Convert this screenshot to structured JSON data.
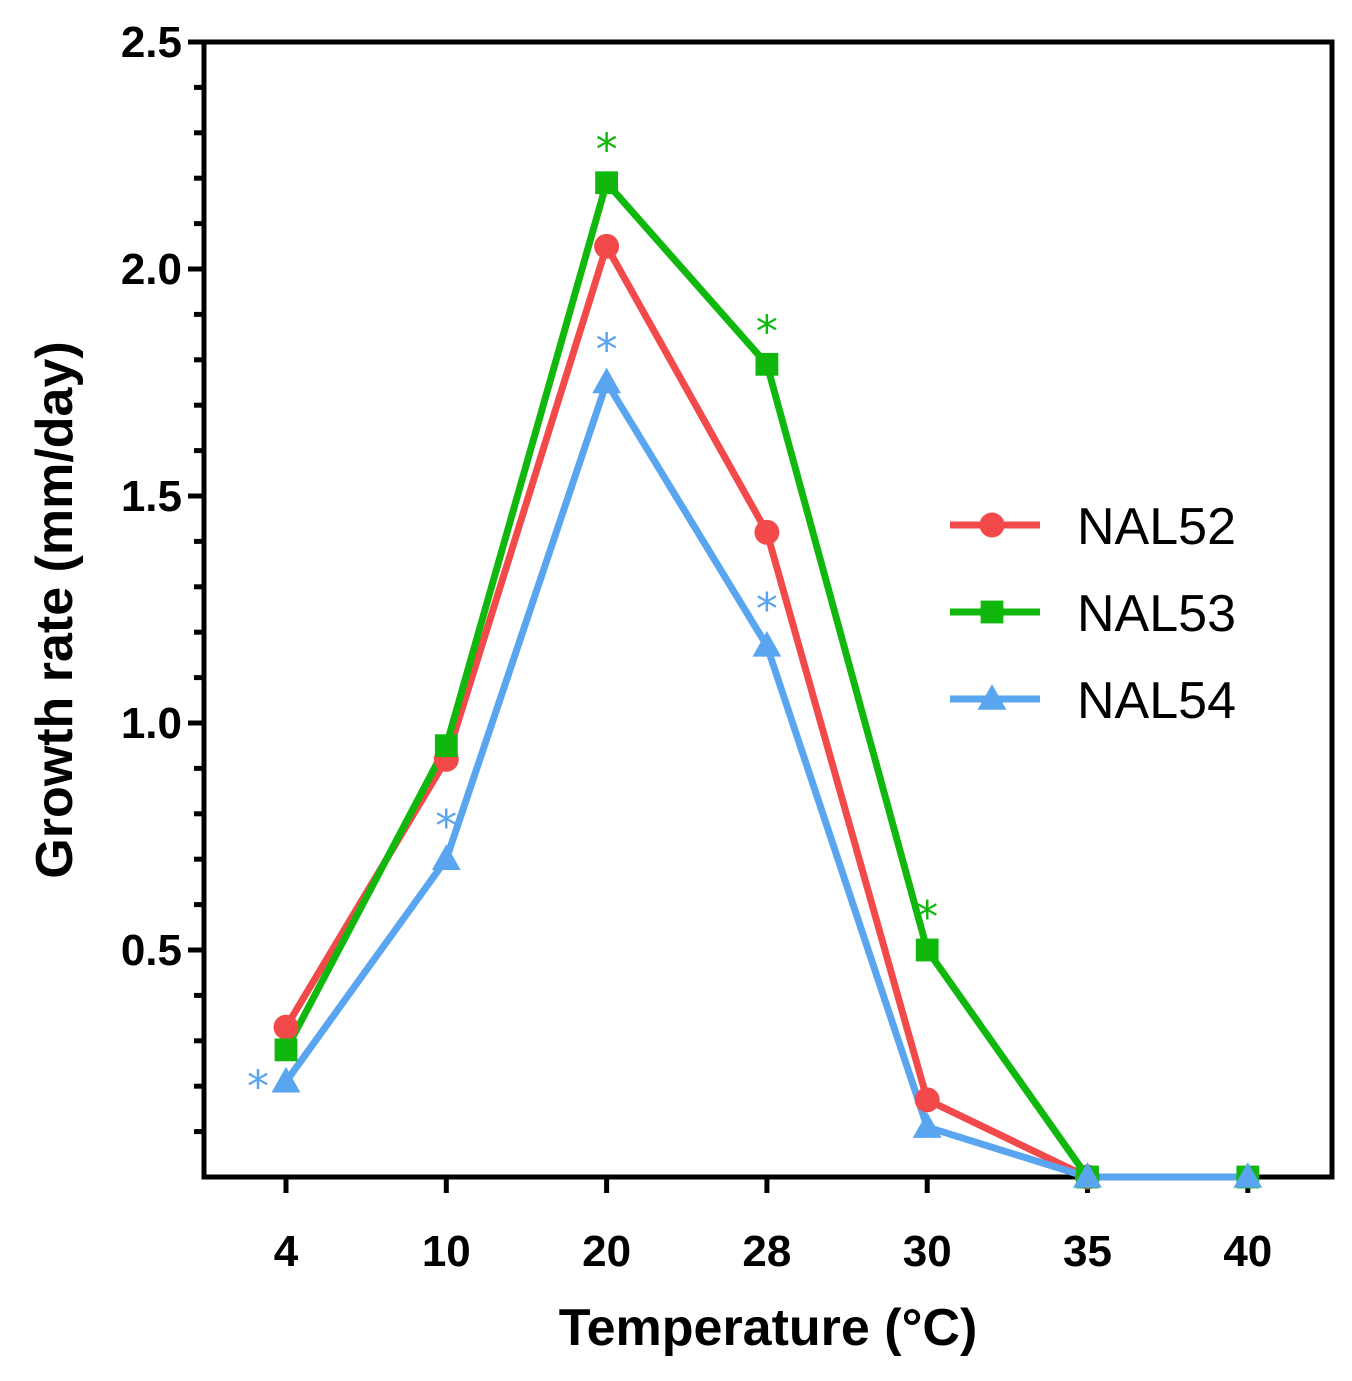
{
  "chart_data": {
    "type": "line",
    "title": "",
    "xlabel": "Temperature (°C)",
    "ylabel": "Growth rate (mm/day)",
    "categories": [
      "4",
      "10",
      "20",
      "28",
      "30",
      "35",
      "40"
    ],
    "ylim": [
      0,
      2.5
    ],
    "yticks": [
      0.5,
      1.0,
      1.5,
      2.0,
      2.5
    ],
    "ytick_labels": [
      "0.5",
      "1.0",
      "1.5",
      "2.0",
      "2.5"
    ],
    "y_minor_step": 0.1,
    "legend_position": "right",
    "significance_symbol": "*",
    "series": [
      {
        "name": "NAL52",
        "color": "#f24a4a",
        "marker": "circle",
        "values": [
          0.33,
          0.92,
          2.05,
          1.42,
          0.17,
          0.0,
          null
        ],
        "significant": [
          false,
          false,
          false,
          false,
          false,
          false,
          false
        ]
      },
      {
        "name": "NAL53",
        "color": "#10b80e",
        "marker": "square",
        "values": [
          0.28,
          0.95,
          2.19,
          1.79,
          0.5,
          0.0,
          0.0
        ],
        "significant": [
          false,
          false,
          true,
          true,
          true,
          false,
          false
        ]
      },
      {
        "name": "NAL54",
        "color": "#5aa5f0",
        "marker": "triangle",
        "values": [
          0.21,
          0.7,
          1.75,
          1.17,
          0.11,
          0.0,
          0.0
        ],
        "significant": [
          true,
          true,
          true,
          true,
          false,
          false,
          false
        ]
      }
    ]
  }
}
